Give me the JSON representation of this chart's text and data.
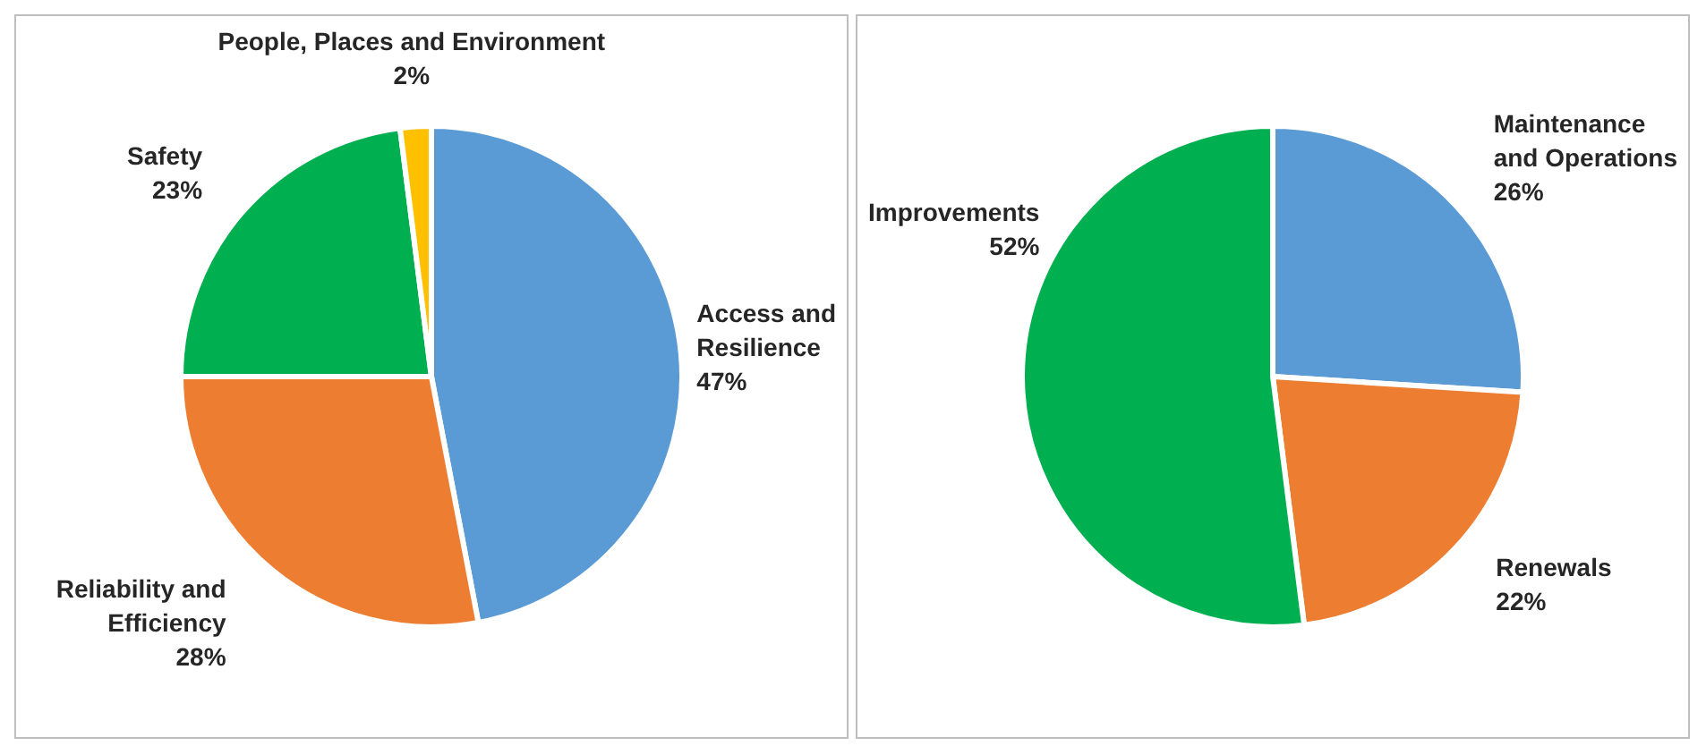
{
  "chart_data": [
    {
      "type": "pie",
      "categories": [
        "Access and Resilience",
        "Reliability and Efficiency",
        "Safety",
        "People, Places and Environment"
      ],
      "values": [
        47,
        28,
        23,
        2
      ],
      "value_labels": [
        "47%",
        "28%",
        "23%",
        "2%"
      ],
      "colors": [
        "#5b9bd5",
        "#ed7d31",
        "#00b050",
        "#ffc000"
      ],
      "legend": false
    },
    {
      "type": "pie",
      "categories": [
        "Maintenance and Operations",
        "Renewals",
        "Improvements"
      ],
      "values": [
        26,
        22,
        52
      ],
      "value_labels": [
        "26%",
        "22%",
        "52%"
      ],
      "colors": [
        "#5b9bd5",
        "#ed7d31",
        "#00b050"
      ],
      "legend": false
    }
  ]
}
